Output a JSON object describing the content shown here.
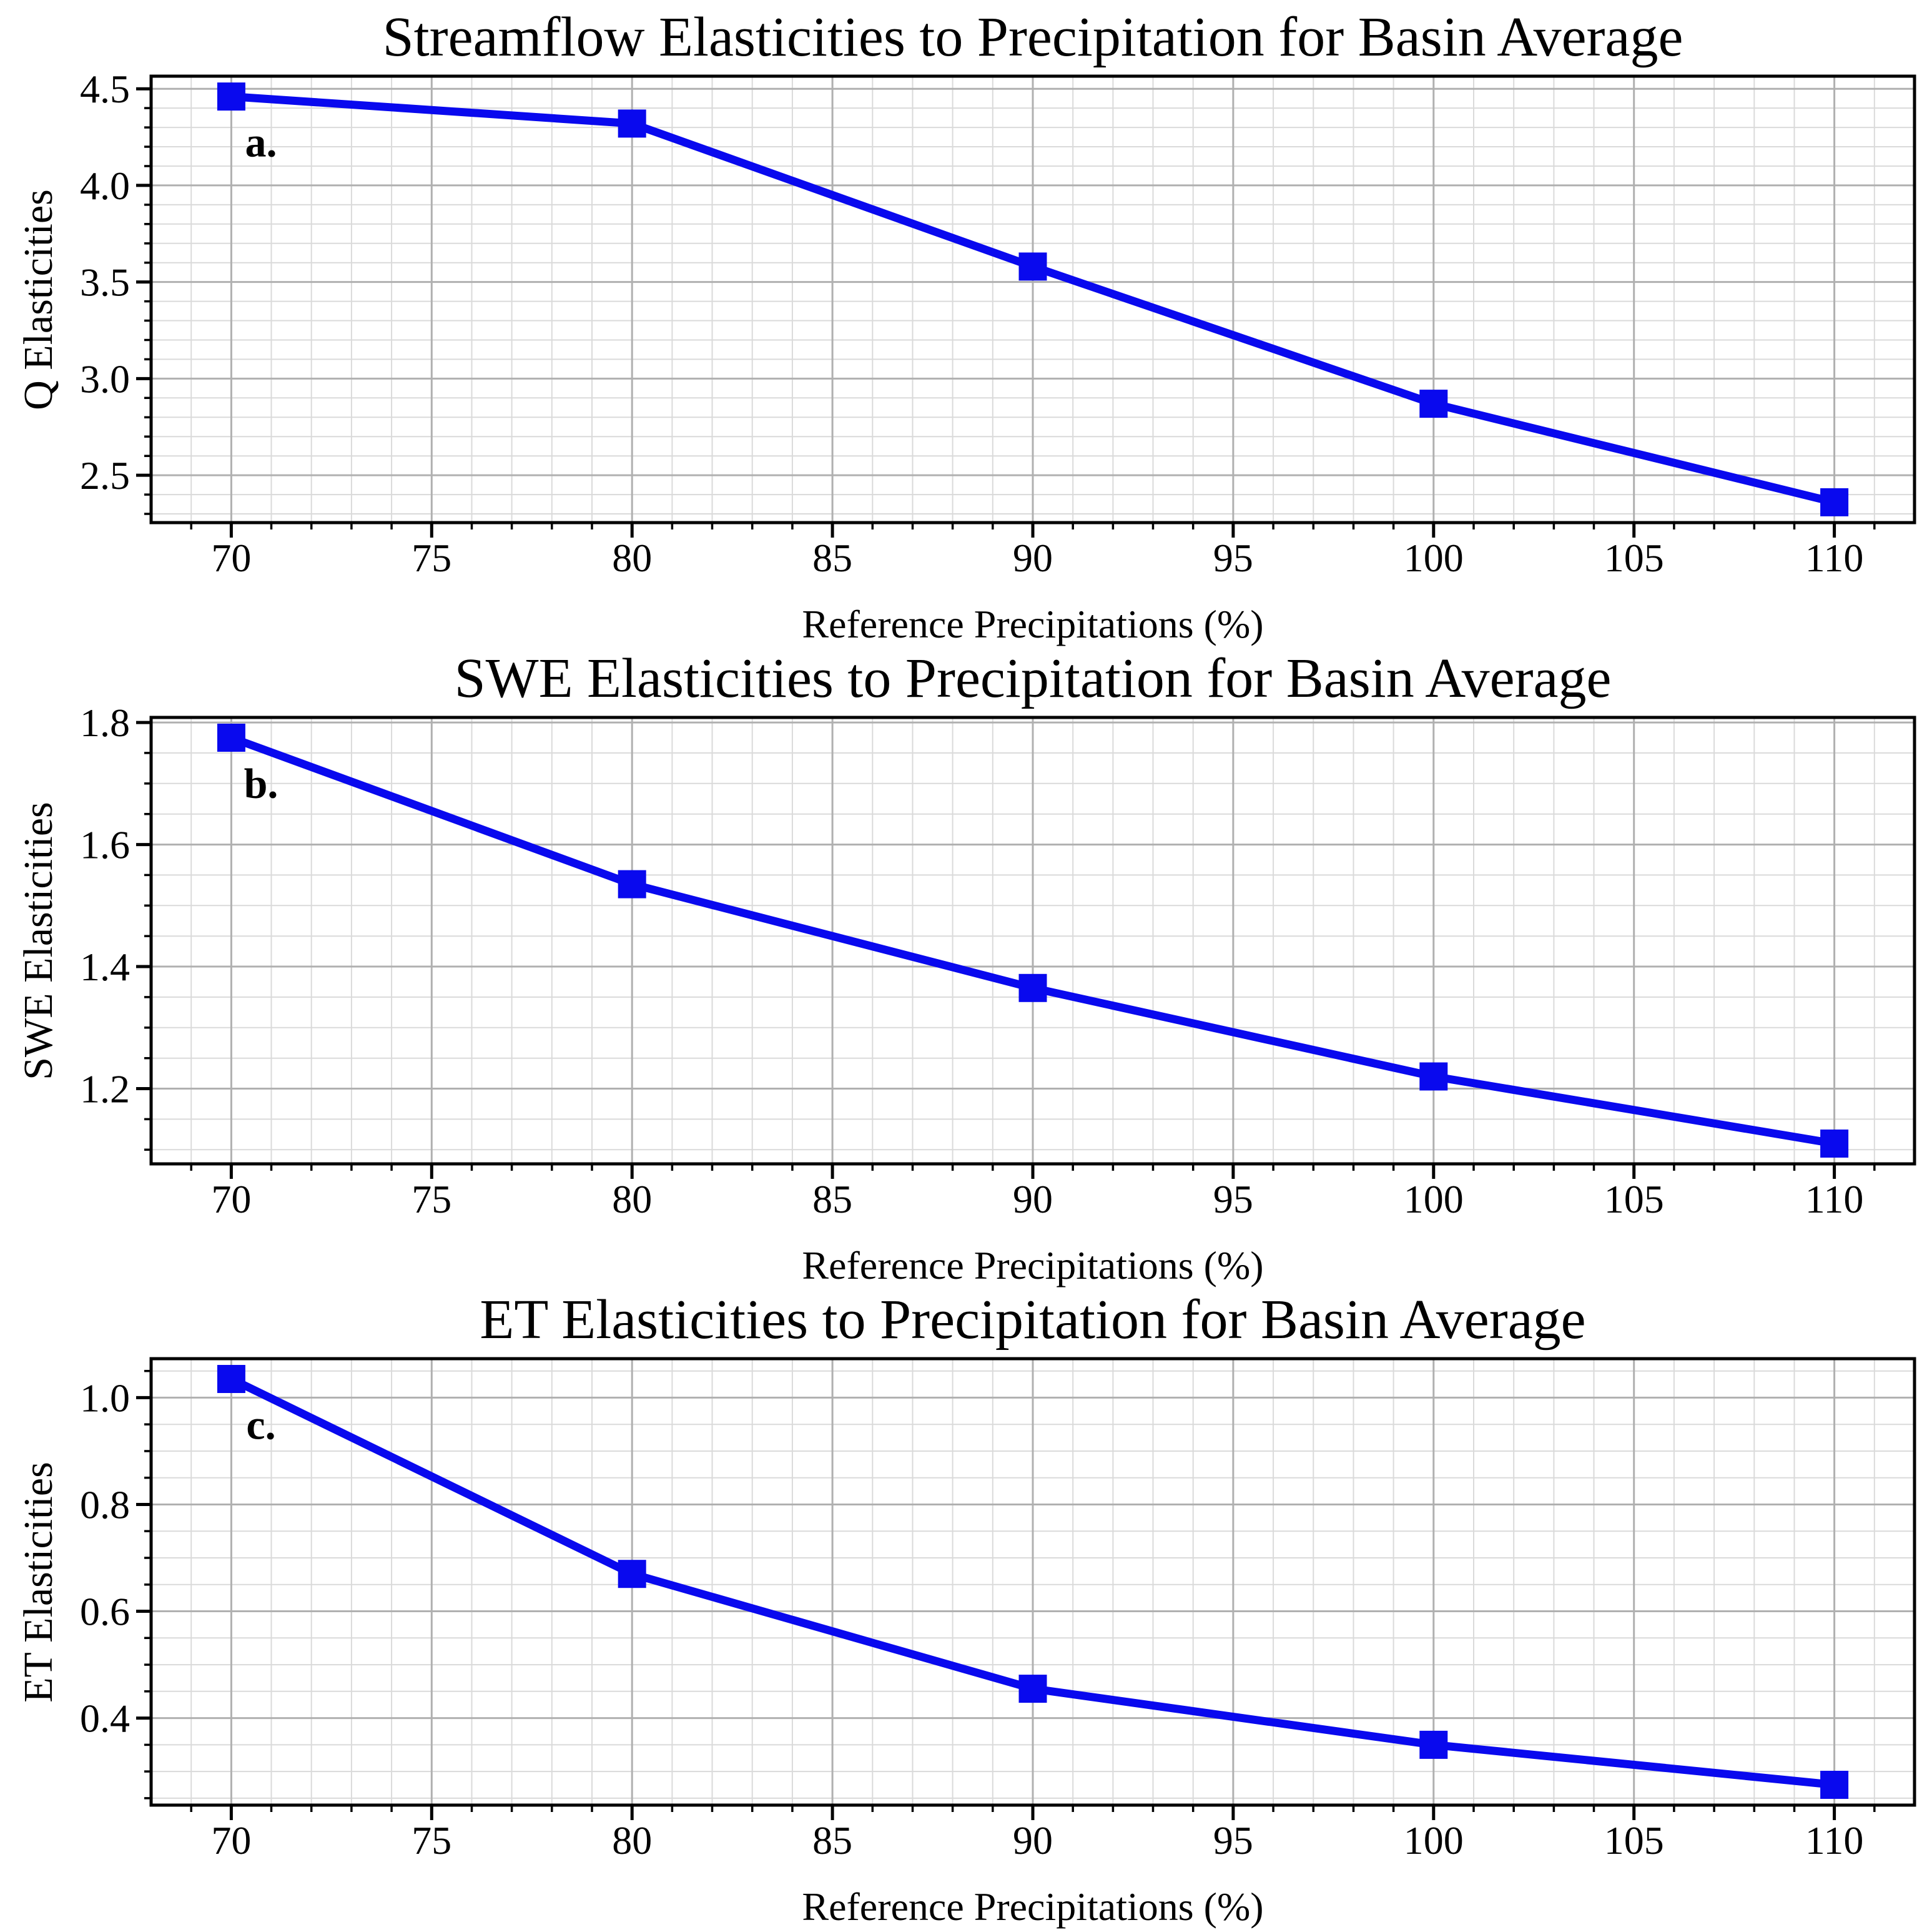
{
  "figure": {
    "background": "#ffffff",
    "line_color": "#0909ee",
    "marker_color": "#0909ee",
    "marker_shape": "square",
    "grid_major_color": "#b0b0b0",
    "grid_minor_color": "#dadada",
    "spine_color": "#000000",
    "text_color": "#000000"
  },
  "chart_data": [
    {
      "type": "line",
      "panel_label": "a.",
      "title": "Streamflow Elasticities to Precipitation for Basin Average",
      "xlabel": "Reference Precipitations (%)",
      "ylabel": "Q Elasticities",
      "x": [
        70,
        80,
        90,
        100,
        110
      ],
      "y": [
        4.46,
        4.32,
        3.58,
        2.87,
        2.36
      ],
      "xlim": [
        68,
        112
      ],
      "ylim": [
        2.2548,
        4.5652
      ],
      "xticks": [
        70,
        75,
        80,
        85,
        90,
        95,
        100,
        105,
        110
      ],
      "xtick_labels": [
        "70",
        "75",
        "80",
        "85",
        "90",
        "95",
        "100",
        "105",
        "110"
      ],
      "yticks": [
        2.5,
        3.0,
        3.5,
        4.0,
        4.5
      ],
      "ytick_labels": [
        "2.5",
        "3.0",
        "3.5",
        "4.0",
        "4.5"
      ],
      "x_minor_step": 1,
      "y_minor_step": 0.1,
      "grid": "on"
    },
    {
      "type": "line",
      "panel_label": "b.",
      "title": "SWE Elasticities to Precipitation for Basin Average",
      "xlabel": "Reference Precipitations (%)",
      "ylabel": "SWE Elasticities",
      "x": [
        70,
        80,
        90,
        100,
        110
      ],
      "y": [
        1.775,
        1.535,
        1.365,
        1.22,
        1.11
      ],
      "xlim": [
        68,
        112
      ],
      "ylim": [
        1.07675,
        1.80825
      ],
      "xticks": [
        70,
        75,
        80,
        85,
        90,
        95,
        100,
        105,
        110
      ],
      "xtick_labels": [
        "70",
        "75",
        "80",
        "85",
        "90",
        "95",
        "100",
        "105",
        "110"
      ],
      "yticks": [
        1.2,
        1.4,
        1.6,
        1.8
      ],
      "ytick_labels": [
        "1.2",
        "1.4",
        "1.6",
        "1.8"
      ],
      "x_minor_step": 1,
      "y_minor_step": 0.05,
      "grid": "on"
    },
    {
      "type": "line",
      "panel_label": "c.",
      "title": "ET Elasticities to Precipitation for Basin Average",
      "xlabel": "Reference Precipitations (%)",
      "ylabel": "ET Elasticities",
      "x": [
        70,
        80,
        90,
        100,
        110
      ],
      "y": [
        1.035,
        0.67,
        0.455,
        0.35,
        0.275
      ],
      "xlim": [
        68,
        112
      ],
      "ylim": [
        0.237,
        1.073
      ],
      "xticks": [
        70,
        75,
        80,
        85,
        90,
        95,
        100,
        105,
        110
      ],
      "xtick_labels": [
        "70",
        "75",
        "80",
        "85",
        "90",
        "95",
        "100",
        "105",
        "110"
      ],
      "yticks": [
        0.4,
        0.6,
        0.8,
        1.0
      ],
      "ytick_labels": [
        "0.4",
        "0.6",
        "0.8",
        "1.0"
      ],
      "x_minor_step": 1,
      "y_minor_step": 0.05,
      "grid": "on"
    }
  ]
}
